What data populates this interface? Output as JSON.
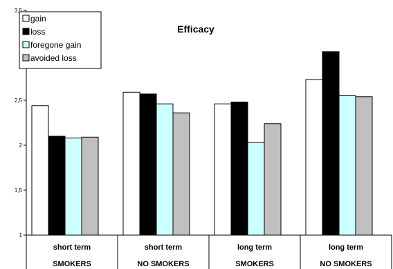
{
  "chart_data": {
    "type": "bar",
    "title": "Efficacy",
    "xlabel": "",
    "ylabel": "",
    "ylim": [
      1,
      3.5
    ],
    "yticks": [
      "1",
      "1,5",
      "2",
      "2,5",
      "3",
      "3,5"
    ],
    "grid": false,
    "legend_position": "top-left",
    "categories": [
      [
        "short term",
        "SMOKERS"
      ],
      [
        "short term",
        "NO SMOKERS"
      ],
      [
        "long term",
        "SMOKERS"
      ],
      [
        "long term",
        "NO SMOKERS"
      ]
    ],
    "series": [
      {
        "name": "gain",
        "color": "#ffffff",
        "values": [
          2.44,
          2.59,
          2.46,
          2.73
        ]
      },
      {
        "name": "loss",
        "color": "#000000",
        "values": [
          2.1,
          2.57,
          2.48,
          3.04
        ]
      },
      {
        "name": "foregone gain",
        "color": "#ccffff",
        "values": [
          2.08,
          2.46,
          2.03,
          2.55
        ]
      },
      {
        "name": "avoided loss",
        "color": "#c0c0c0",
        "values": [
          2.09,
          2.36,
          2.24,
          2.54
        ]
      }
    ]
  }
}
